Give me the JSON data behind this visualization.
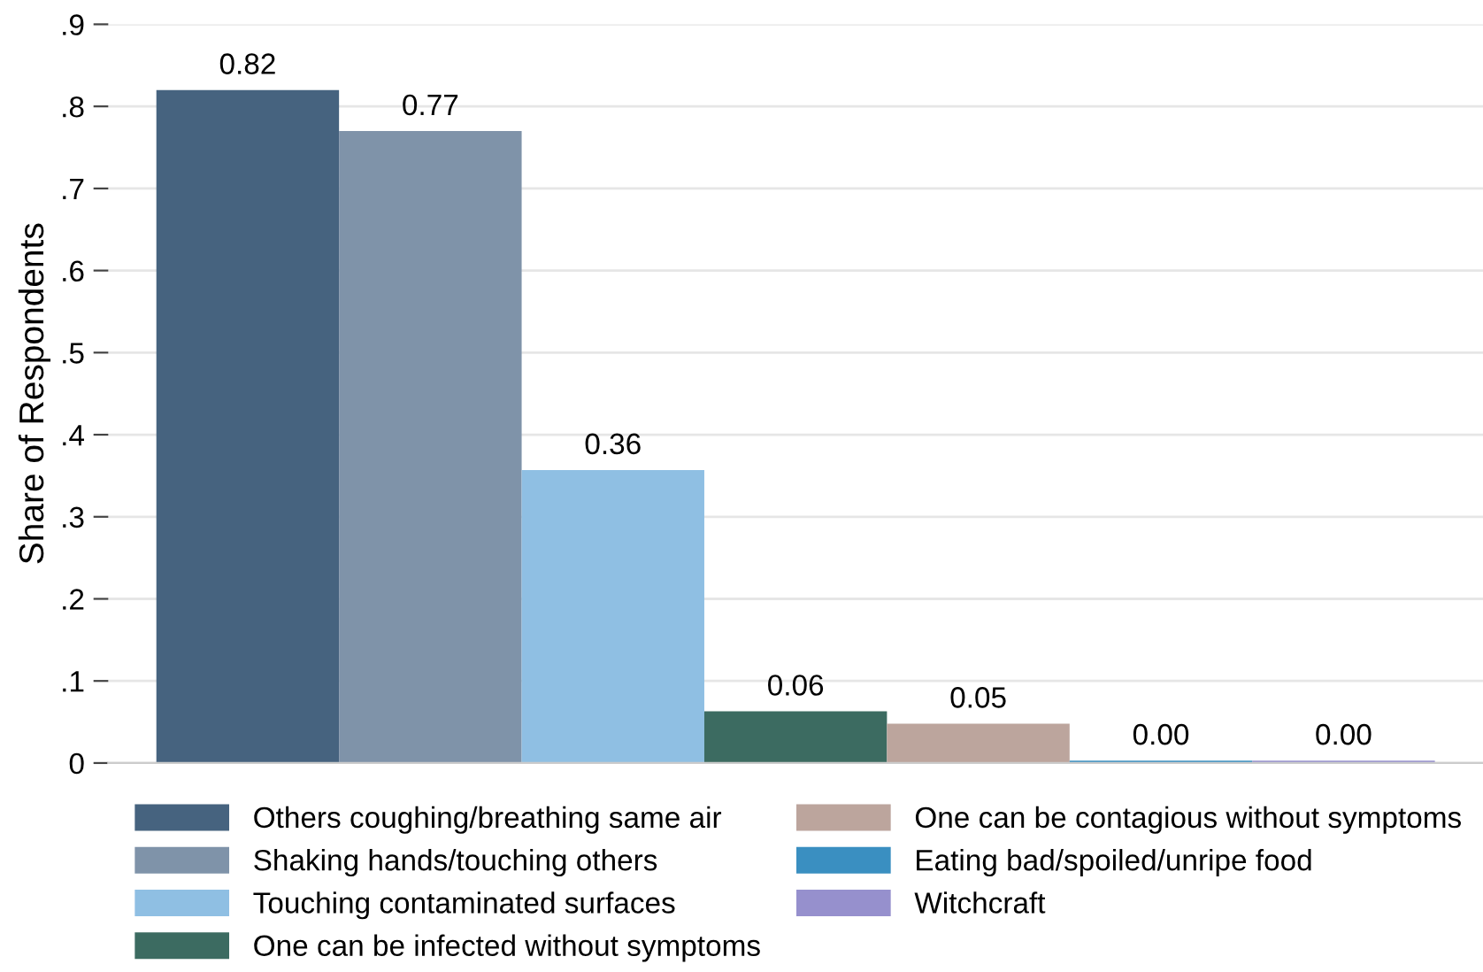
{
  "chart_data": {
    "type": "bar",
    "ylabel": "Share of Respondents",
    "categories": [
      null
    ],
    "series": [
      {
        "name": "Others coughing/breathing same air",
        "color": "#46637f",
        "values": [
          0.82
        ],
        "value_labels": [
          "0.82"
        ]
      },
      {
        "name": "Shaking hands/touching others",
        "color": "#7f93a9",
        "values": [
          0.77
        ],
        "value_labels": [
          "0.77"
        ]
      },
      {
        "name": "Touching contaminated surfaces",
        "color": "#8fbfe3",
        "values": [
          0.357
        ],
        "value_labels": [
          "0.36"
        ]
      },
      {
        "name": "One can be infected without symptoms",
        "color": "#3c6b61",
        "values": [
          0.063
        ],
        "value_labels": [
          "0.06"
        ]
      },
      {
        "name": "One can be contagious without symptoms",
        "color": "#bca59d",
        "values": [
          0.048
        ],
        "value_labels": [
          "0.05"
        ]
      },
      {
        "name": "Eating bad/spoiled/unripe food",
        "color": "#3a8fc1",
        "values": [
          0.003
        ],
        "value_labels": [
          "0.00"
        ]
      },
      {
        "name": "Witchcraft",
        "color": "#9690cd",
        "values": [
          0.003
        ],
        "value_labels": [
          "0.00"
        ]
      }
    ],
    "ylim": [
      0,
      0.9
    ],
    "yticks": [
      0,
      {
        "value": 0.1,
        "label": ".1"
      },
      {
        "value": 0.2,
        "label": ".2"
      },
      {
        "value": 0.3,
        "label": ".3"
      },
      {
        "value": 0.4,
        "label": ".4"
      },
      {
        "value": 0.5,
        "label": ".5"
      },
      {
        "value": 0.6,
        "label": ".6"
      },
      {
        "value": 0.7,
        "label": ".7"
      },
      {
        "value": 0.8,
        "label": ".8"
      },
      {
        "value": 0.9,
        "label": ".9"
      }
    ],
    "grid": "y",
    "legend": "bottom"
  }
}
